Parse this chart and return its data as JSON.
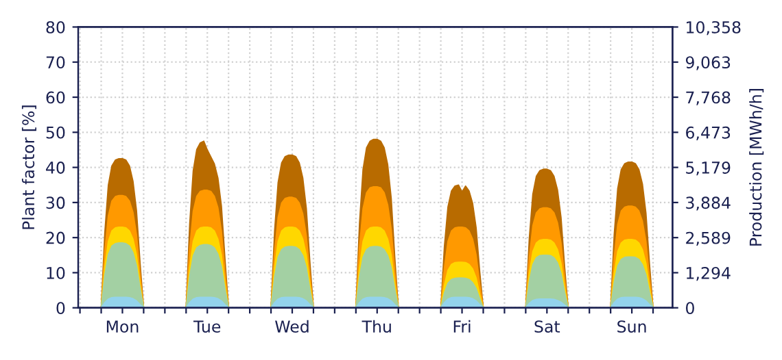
{
  "chart_data": {
    "type": "area",
    "categories": [
      null,
      null,
      null,
      null,
      null,
      null,
      null,
      null,
      null,
      null,
      null,
      null,
      "Mon",
      null,
      null,
      null,
      null,
      null,
      null,
      null,
      null,
      null,
      null,
      null,
      null,
      null,
      null,
      null,
      null,
      null,
      null,
      null,
      null,
      null,
      null,
      null,
      "Tue",
      null,
      null,
      null,
      null,
      null,
      null,
      null,
      null,
      null,
      null,
      null,
      null,
      null,
      null,
      null,
      null,
      null,
      null,
      null,
      null,
      null,
      null,
      null,
      "Wed",
      null,
      null,
      null,
      null,
      null,
      null,
      null,
      null,
      null,
      null,
      null,
      null,
      null,
      null,
      null,
      null,
      null,
      null,
      null,
      null,
      null,
      null,
      null,
      "Thu",
      null,
      null,
      null,
      null,
      null,
      null,
      null,
      null,
      null,
      null,
      null,
      null,
      null,
      null,
      null,
      null,
      null,
      null,
      null,
      null,
      null,
      null,
      null,
      "Fri",
      null,
      null,
      null,
      null,
      null,
      null,
      null,
      null,
      null,
      null,
      null,
      null,
      null,
      null,
      null,
      null,
      null,
      null,
      null,
      null,
      null,
      null,
      null,
      "Sat",
      null,
      null,
      null,
      null,
      null,
      null,
      null,
      null,
      null,
      null,
      null,
      null,
      null,
      null,
      null,
      null,
      null,
      null,
      null,
      null,
      null,
      null,
      null,
      "Sun",
      null,
      null,
      null,
      null,
      null,
      null,
      null,
      null,
      null,
      null,
      null
    ],
    "series": [
      {
        "color": "#b86b00",
        "values": [
          0,
          0,
          0,
          0,
          0,
          0,
          0,
          21.3,
          34.9,
          40.4,
          42.1,
          42.5,
          42.5,
          42.1,
          40.4,
          36.1,
          27.6,
          12.8,
          0,
          0,
          0,
          0,
          0,
          0,
          0,
          0,
          0,
          0,
          0,
          0,
          0,
          23.8,
          39,
          45.1,
          47,
          47.5,
          45,
          43,
          41,
          37,
          29,
          14,
          0,
          0,
          0,
          0,
          0,
          0,
          0,
          0,
          0,
          0,
          0,
          0,
          0,
          21.8,
          35.7,
          41.3,
          43.1,
          43.5,
          43.5,
          43.1,
          41.3,
          37,
          28.3,
          13.1,
          0,
          0,
          0,
          0,
          0,
          0,
          0,
          0,
          0,
          0,
          0,
          0,
          0,
          24,
          39.4,
          45.6,
          47.5,
          48,
          48,
          47.5,
          45.6,
          40.8,
          31.2,
          14.4,
          0,
          0,
          0,
          0,
          0,
          0,
          0,
          0,
          0,
          0,
          0,
          0,
          0,
          17.5,
          28.7,
          33.3,
          34.7,
          35,
          33,
          34.7,
          33.3,
          29.8,
          22.8,
          10.5,
          0,
          0,
          0,
          0,
          0,
          0,
          0,
          0,
          0,
          0,
          0,
          0,
          0,
          19.8,
          32.4,
          37.5,
          39.1,
          39.5,
          39.5,
          39.1,
          37.5,
          33.6,
          25.7,
          11.9,
          0,
          0,
          0,
          0,
          0,
          0,
          0,
          0,
          0,
          0,
          0,
          0,
          0,
          20.8,
          34,
          39.4,
          41.1,
          41.5,
          41.5,
          41.1,
          39.4,
          35.3,
          27,
          12.5,
          0,
          0,
          0,
          0,
          0,
          0
        ]
      },
      {
        "color": "#ff9900",
        "values": [
          0,
          0,
          0,
          0,
          0,
          0,
          0,
          16,
          26.2,
          30.4,
          31.7,
          32,
          32,
          31.7,
          30.4,
          27.2,
          20.8,
          9.6,
          0,
          0,
          0,
          0,
          0,
          0,
          0,
          0,
          0,
          0,
          0,
          0,
          0,
          16.8,
          27.5,
          31.8,
          33.2,
          33.5,
          33.5,
          33.2,
          31.8,
          28.5,
          21.8,
          10.1,
          0,
          0,
          0,
          0,
          0,
          0,
          0,
          0,
          0,
          0,
          0,
          0,
          0,
          15.8,
          25.8,
          29.9,
          31.2,
          31.5,
          31.5,
          31.2,
          29.9,
          26.8,
          20.5,
          9.5,
          0,
          0,
          0,
          0,
          0,
          0,
          0,
          0,
          0,
          0,
          0,
          0,
          0,
          17.3,
          28.3,
          32.8,
          34.2,
          34.5,
          34.5,
          34.2,
          32.8,
          29.3,
          22.4,
          10.4,
          0,
          0,
          0,
          0,
          0,
          0,
          0,
          0,
          0,
          0,
          0,
          0,
          0,
          11.5,
          18.9,
          21.9,
          22.8,
          23,
          23,
          22.8,
          21.9,
          19.6,
          15,
          6.9,
          0,
          0,
          0,
          0,
          0,
          0,
          0,
          0,
          0,
          0,
          0,
          0,
          0,
          14.3,
          23.4,
          27.1,
          28.2,
          28.5,
          28.5,
          28.2,
          27.1,
          24.2,
          18.5,
          8.6,
          0,
          0,
          0,
          0,
          0,
          0,
          0,
          0,
          0,
          0,
          0,
          0,
          0,
          14.5,
          23.8,
          27.6,
          28.7,
          29,
          29,
          28.7,
          27.6,
          24.7,
          18.9,
          8.7,
          0,
          0,
          0,
          0,
          0,
          0
        ]
      },
      {
        "color": "#ffd700",
        "values": [
          0,
          0,
          0,
          0,
          0,
          0,
          0,
          11.5,
          18.9,
          21.9,
          22.8,
          23,
          23,
          22.8,
          21.9,
          19.6,
          15,
          6.9,
          0,
          0,
          0,
          0,
          0,
          0,
          0,
          0,
          0,
          0,
          0,
          0,
          0,
          11.5,
          18.9,
          21.9,
          22.8,
          23,
          23,
          22.8,
          21.9,
          19.6,
          15,
          6.9,
          0,
          0,
          0,
          0,
          0,
          0,
          0,
          0,
          0,
          0,
          0,
          0,
          0,
          11.5,
          18.9,
          21.9,
          22.8,
          23,
          23,
          22.8,
          21.9,
          19.6,
          15,
          6.9,
          0,
          0,
          0,
          0,
          0,
          0,
          0,
          0,
          0,
          0,
          0,
          0,
          0,
          11.5,
          18.9,
          21.9,
          22.8,
          23,
          23,
          22.8,
          21.9,
          19.6,
          15,
          6.9,
          0,
          0,
          0,
          0,
          0,
          0,
          0,
          0,
          0,
          0,
          0,
          0,
          0,
          6.5,
          10.7,
          12.4,
          12.9,
          13,
          13,
          12.9,
          12.4,
          11.1,
          8.5,
          3.9,
          0,
          0,
          0,
          0,
          0,
          0,
          0,
          0,
          0,
          0,
          0,
          0,
          0,
          9.8,
          16,
          18.5,
          19.3,
          19.5,
          19.5,
          19.3,
          18.5,
          16.6,
          12.7,
          5.9,
          0,
          0,
          0,
          0,
          0,
          0,
          0,
          0,
          0,
          0,
          0,
          0,
          0,
          9.8,
          16,
          18.5,
          19.3,
          19.5,
          19.5,
          19.3,
          18.5,
          16.6,
          12.7,
          5.9,
          0,
          0,
          0,
          0,
          0,
          0
        ]
      },
      {
        "color": "#a3d0a3",
        "values": [
          0,
          0,
          0,
          0,
          0,
          0,
          0,
          9.3,
          15.2,
          17.6,
          18.3,
          18.5,
          18.5,
          18.3,
          17.6,
          15.7,
          12,
          5.6,
          0,
          0,
          0,
          0,
          0,
          0,
          0,
          0,
          0,
          0,
          0,
          0,
          0,
          9,
          14.8,
          17.1,
          17.8,
          18,
          18,
          17.8,
          17.1,
          15.3,
          11.7,
          5.4,
          0,
          0,
          0,
          0,
          0,
          0,
          0,
          0,
          0,
          0,
          0,
          0,
          0,
          8.8,
          14.4,
          16.6,
          17.3,
          17.5,
          17.5,
          17.3,
          16.6,
          14.9,
          11.4,
          5.3,
          0,
          0,
          0,
          0,
          0,
          0,
          0,
          0,
          0,
          0,
          0,
          0,
          0,
          8.8,
          14.4,
          16.6,
          17.3,
          17.5,
          17.5,
          17.3,
          16.6,
          14.9,
          11.4,
          5.3,
          0,
          0,
          0,
          0,
          0,
          0,
          0,
          0,
          0,
          0,
          0,
          0,
          0,
          4.3,
          7,
          8.1,
          8.4,
          8.5,
          8.5,
          8.4,
          8.1,
          7.2,
          5.5,
          2.6,
          0,
          0,
          0,
          0,
          0,
          0,
          0,
          0,
          0,
          0,
          0,
          0,
          0,
          7.5,
          12.3,
          14.3,
          14.9,
          15,
          15,
          14.9,
          14.3,
          12.8,
          9.8,
          4.5,
          0,
          0,
          0,
          0,
          0,
          0,
          0,
          0,
          0,
          0,
          0,
          0,
          0,
          7.3,
          11.9,
          13.8,
          14.4,
          14.5,
          14.5,
          14.4,
          13.8,
          12.3,
          9.4,
          4.4,
          0,
          0,
          0,
          0,
          0,
          0
        ]
      },
      {
        "color": "#93d3ec",
        "values": [
          0,
          0,
          0,
          0,
          0,
          0,
          0,
          1.5,
          2.5,
          2.9,
          3,
          3,
          3,
          3,
          2.9,
          2.6,
          2,
          0.9,
          0,
          0,
          0,
          0,
          0,
          0,
          0,
          0,
          0,
          0,
          0,
          0,
          0,
          1.5,
          2.5,
          2.9,
          3,
          3,
          3,
          3,
          2.9,
          2.6,
          2,
          0.9,
          0,
          0,
          0,
          0,
          0,
          0,
          0,
          0,
          0,
          0,
          0,
          0,
          0,
          1.5,
          2.5,
          2.9,
          3,
          3,
          3,
          3,
          2.9,
          2.6,
          2,
          0.9,
          0,
          0,
          0,
          0,
          0,
          0,
          0,
          0,
          0,
          0,
          0,
          0,
          0,
          1.5,
          2.5,
          2.9,
          3,
          3,
          3,
          3,
          2.9,
          2.6,
          2,
          0.9,
          0,
          0,
          0,
          0,
          0,
          0,
          0,
          0,
          0,
          0,
          0,
          0,
          0,
          1.5,
          2.5,
          2.9,
          3,
          3,
          3,
          3,
          2.9,
          2.6,
          2,
          0.9,
          0,
          0,
          0,
          0,
          0,
          0,
          0,
          0,
          0,
          0,
          0,
          0,
          0,
          1.3,
          2.1,
          2.4,
          2.5,
          2.5,
          2.5,
          2.5,
          2.4,
          2.1,
          1.6,
          0.8,
          0,
          0,
          0,
          0,
          0,
          0,
          0,
          0,
          0,
          0,
          0,
          0,
          0,
          1.5,
          2.5,
          2.9,
          3,
          3,
          3,
          3,
          2.9,
          2.6,
          2,
          0.9,
          0,
          0,
          0,
          0,
          0,
          0
        ]
      }
    ],
    "ylim": [
      0,
      80
    ],
    "yticks": [
      0,
      10,
      20,
      30,
      40,
      50,
      60,
      70,
      80
    ],
    "ylabel": "Plant factor [%]",
    "y2lim": [
      0,
      10358
    ],
    "y2ticks": [
      {
        "value": 0,
        "label": "0"
      },
      {
        "value": 1294,
        "label": "1,294"
      },
      {
        "value": 2589,
        "label": "2,589"
      },
      {
        "value": 3884,
        "label": "3,884"
      },
      {
        "value": 5179,
        "label": "5,179"
      },
      {
        "value": 6473,
        "label": "6,473"
      },
      {
        "value": 7768,
        "label": "7,768"
      },
      {
        "value": 9063,
        "label": "9,063"
      },
      {
        "value": 10358,
        "label": "10,358"
      }
    ],
    "y2label": "Production [MWh/h]",
    "grid": true
  }
}
